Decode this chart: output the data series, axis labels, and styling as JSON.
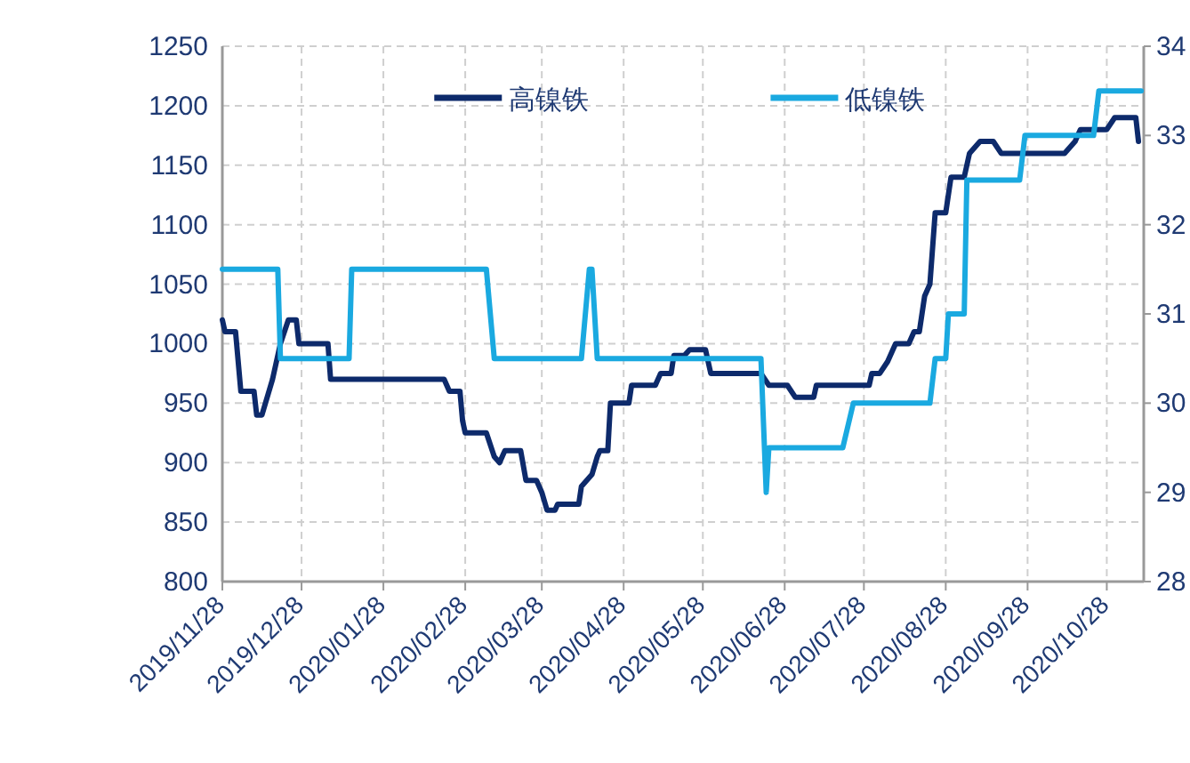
{
  "chart_data": {
    "type": "line",
    "xlim": [
      "2019-11-28",
      "2020-11-11"
    ],
    "xticks": [
      {
        "value": "2019-11-28",
        "label": "2019/11/28"
      },
      {
        "value": "2019-12-28",
        "label": "2019/12/28"
      },
      {
        "value": "2020-01-28",
        "label": "2020/01/28"
      },
      {
        "value": "2020-02-28",
        "label": "2020/02/28"
      },
      {
        "value": "2020-03-28",
        "label": "2020/03/28"
      },
      {
        "value": "2020-04-28",
        "label": "2020/04/28"
      },
      {
        "value": "2020-05-28",
        "label": "2020/05/28"
      },
      {
        "value": "2020-06-28",
        "label": "2020/06/28"
      },
      {
        "value": "2020-07-28",
        "label": "2020/07/28"
      },
      {
        "value": "2020-08-28",
        "label": "2020/08/28"
      },
      {
        "value": "2020-09-28",
        "label": "2020/09/28"
      },
      {
        "value": "2020-10-28",
        "label": "2020/10/28"
      }
    ],
    "ylim": [
      800,
      1250
    ],
    "yticks": [
      800,
      850,
      900,
      950,
      1000,
      1050,
      1100,
      1150,
      1200,
      1250
    ],
    "y2lim": [
      28,
      34
    ],
    "y2ticks": [
      28,
      29,
      30,
      31,
      32,
      33,
      34
    ],
    "grid": true,
    "legend": "top",
    "series": [
      {
        "name": "高镍铁",
        "color": "#0d2a6b",
        "x": [
          "2019-11-28",
          "2019-11-29",
          "2019-12-03",
          "2019-12-05",
          "2019-12-10",
          "2019-12-11",
          "2019-12-13",
          "2019-12-17",
          "2019-12-20",
          "2019-12-23",
          "2019-12-26",
          "2019-12-27",
          "2020-01-07",
          "2020-01-08",
          "2020-02-20",
          "2020-02-22",
          "2020-02-26",
          "2020-02-27",
          "2020-02-28",
          "2020-03-07",
          "2020-03-10",
          "2020-03-12",
          "2020-03-14",
          "2020-03-20",
          "2020-03-22",
          "2020-03-26",
          "2020-03-28",
          "2020-03-30",
          "2020-04-02",
          "2020-04-03",
          "2020-04-11",
          "2020-04-12",
          "2020-04-16",
          "2020-04-18",
          "2020-04-19",
          "2020-04-22",
          "2020-04-23",
          "2020-04-30",
          "2020-05-01",
          "2020-05-10",
          "2020-05-12",
          "2020-05-16",
          "2020-05-17",
          "2020-05-21",
          "2020-05-23",
          "2020-05-29",
          "2020-05-31",
          "2020-06-19",
          "2020-06-22",
          "2020-06-29",
          "2020-07-02",
          "2020-07-09",
          "2020-07-10",
          "2020-07-30",
          "2020-07-31",
          "2020-08-03",
          "2020-08-06",
          "2020-08-09",
          "2020-08-14",
          "2020-08-16",
          "2020-08-18",
          "2020-08-20",
          "2020-08-22",
          "2020-08-24",
          "2020-08-28",
          "2020-08-30",
          "2020-09-04",
          "2020-09-06",
          "2020-09-10",
          "2020-09-15",
          "2020-09-18",
          "2020-10-12",
          "2020-10-16",
          "2020-10-18",
          "2020-10-28",
          "2020-10-31",
          "2020-11-08",
          "2020-11-09"
        ],
        "values": [
          1020,
          1010,
          1010,
          960,
          960,
          940,
          940,
          970,
          1000,
          1020,
          1020,
          1000,
          1000,
          970,
          970,
          960,
          960,
          935,
          925,
          925,
          905,
          900,
          910,
          910,
          885,
          885,
          875,
          860,
          860,
          865,
          865,
          880,
          890,
          905,
          910,
          910,
          950,
          950,
          965,
          965,
          975,
          975,
          990,
          990,
          995,
          995,
          975,
          975,
          965,
          965,
          955,
          955,
          965,
          965,
          975,
          975,
          985,
          1000,
          1000,
          1010,
          1010,
          1040,
          1050,
          1110,
          1110,
          1140,
          1140,
          1160,
          1170,
          1170,
          1160,
          1160,
          1170,
          1180,
          1180,
          1190,
          1190,
          1170
        ]
      },
      {
        "name": "低镍铁",
        "color": "#1aa9e0",
        "axis": "y2",
        "x": [
          "2019-11-28",
          "2019-12-19",
          "2019-12-20",
          "2020-01-15",
          "2020-01-16",
          "2020-03-07",
          "2020-03-10",
          "2020-04-12",
          "2020-04-15",
          "2020-04-16",
          "2020-04-18",
          "2020-06-19",
          "2020-06-21",
          "2020-06-22",
          "2020-07-20",
          "2020-07-24",
          "2020-08-22",
          "2020-08-24",
          "2020-08-28",
          "2020-08-29",
          "2020-09-04",
          "2020-09-05",
          "2020-09-25",
          "2020-09-27",
          "2020-10-23",
          "2020-10-25",
          "2020-11-10"
        ],
        "values": [
          31.5,
          31.5,
          30.5,
          30.5,
          31.5,
          31.5,
          30.5,
          30.5,
          31.5,
          31.5,
          30.5,
          30.5,
          29.0,
          29.5,
          29.5,
          30.0,
          30.0,
          30.5,
          30.5,
          31.0,
          31.0,
          32.5,
          32.5,
          33.0,
          33.0,
          33.5,
          33.5
        ]
      }
    ]
  }
}
